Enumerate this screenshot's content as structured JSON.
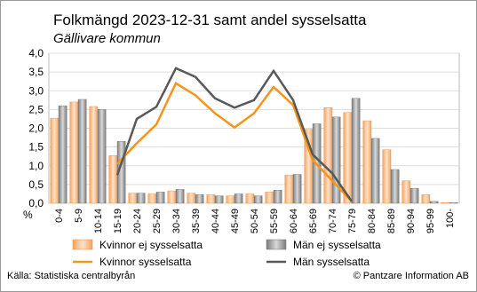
{
  "chart_data": {
    "type": "bar-line",
    "title": "Folkmängd 2023-12-31 samt andel sysselsatta",
    "subtitle": "Gällivare kommun",
    "y_unit": "%",
    "categories": [
      "0-4",
      "5-9",
      "10-14",
      "15-19",
      "20-24",
      "25-29",
      "30-34",
      "35-39",
      "40-44",
      "45-49",
      "50-54",
      "55-59",
      "60-64",
      "65-69",
      "70-74",
      "75-79",
      "80-84",
      "85-89",
      "90-94",
      "95-99",
      "100-"
    ],
    "series": [
      {
        "name": "Kvinnor ej sysselsatta",
        "kind": "bar",
        "color": "#f9b27a",
        "values": [
          2.27,
          2.7,
          2.58,
          1.27,
          0.27,
          0.25,
          0.33,
          0.27,
          0.23,
          0.2,
          0.25,
          0.3,
          0.75,
          1.97,
          2.55,
          2.42,
          2.2,
          1.43,
          0.6,
          0.23,
          0.02
        ]
      },
      {
        "name": "Män ej sysselsatta",
        "kind": "bar",
        "color": "#8c8c8c",
        "values": [
          2.6,
          2.77,
          2.5,
          1.65,
          0.27,
          0.3,
          0.37,
          0.23,
          0.2,
          0.25,
          0.2,
          0.35,
          0.77,
          2.12,
          2.3,
          2.8,
          1.73,
          0.9,
          0.4,
          0.05,
          0.02
        ]
      },
      {
        "name": "Kvinnor sysselsatta",
        "kind": "line",
        "color": "#f7941d",
        "values": [
          null,
          null,
          null,
          1.05,
          1.6,
          2.1,
          3.2,
          2.88,
          2.4,
          2.02,
          2.4,
          3.1,
          2.62,
          1.15,
          0.6,
          0.05,
          null,
          null,
          null,
          null,
          null
        ]
      },
      {
        "name": "Män sysselsatta",
        "kind": "line",
        "color": "#595959",
        "values": [
          null,
          null,
          null,
          0.75,
          2.25,
          2.57,
          3.6,
          3.37,
          2.8,
          2.55,
          2.75,
          3.53,
          2.75,
          1.3,
          0.8,
          0.05,
          null,
          null,
          null,
          null,
          null
        ]
      }
    ],
    "ylim": [
      0,
      4
    ],
    "yticks": [
      {
        "value": 0,
        "label": "0,0"
      },
      {
        "value": 0.5,
        "label": "0,5"
      },
      {
        "value": 1,
        "label": "1,0"
      },
      {
        "value": 1.5,
        "label": "1,5"
      },
      {
        "value": 2,
        "label": "2,0"
      },
      {
        "value": 2.5,
        "label": "2,5"
      },
      {
        "value": 3,
        "label": "3,0"
      },
      {
        "value": 3.5,
        "label": "3,5"
      },
      {
        "value": 4,
        "label": "4,0"
      }
    ],
    "grid": true,
    "source": "Källa: Statistiska centralbyrån",
    "copyright": "© Pantzare Information AB"
  }
}
